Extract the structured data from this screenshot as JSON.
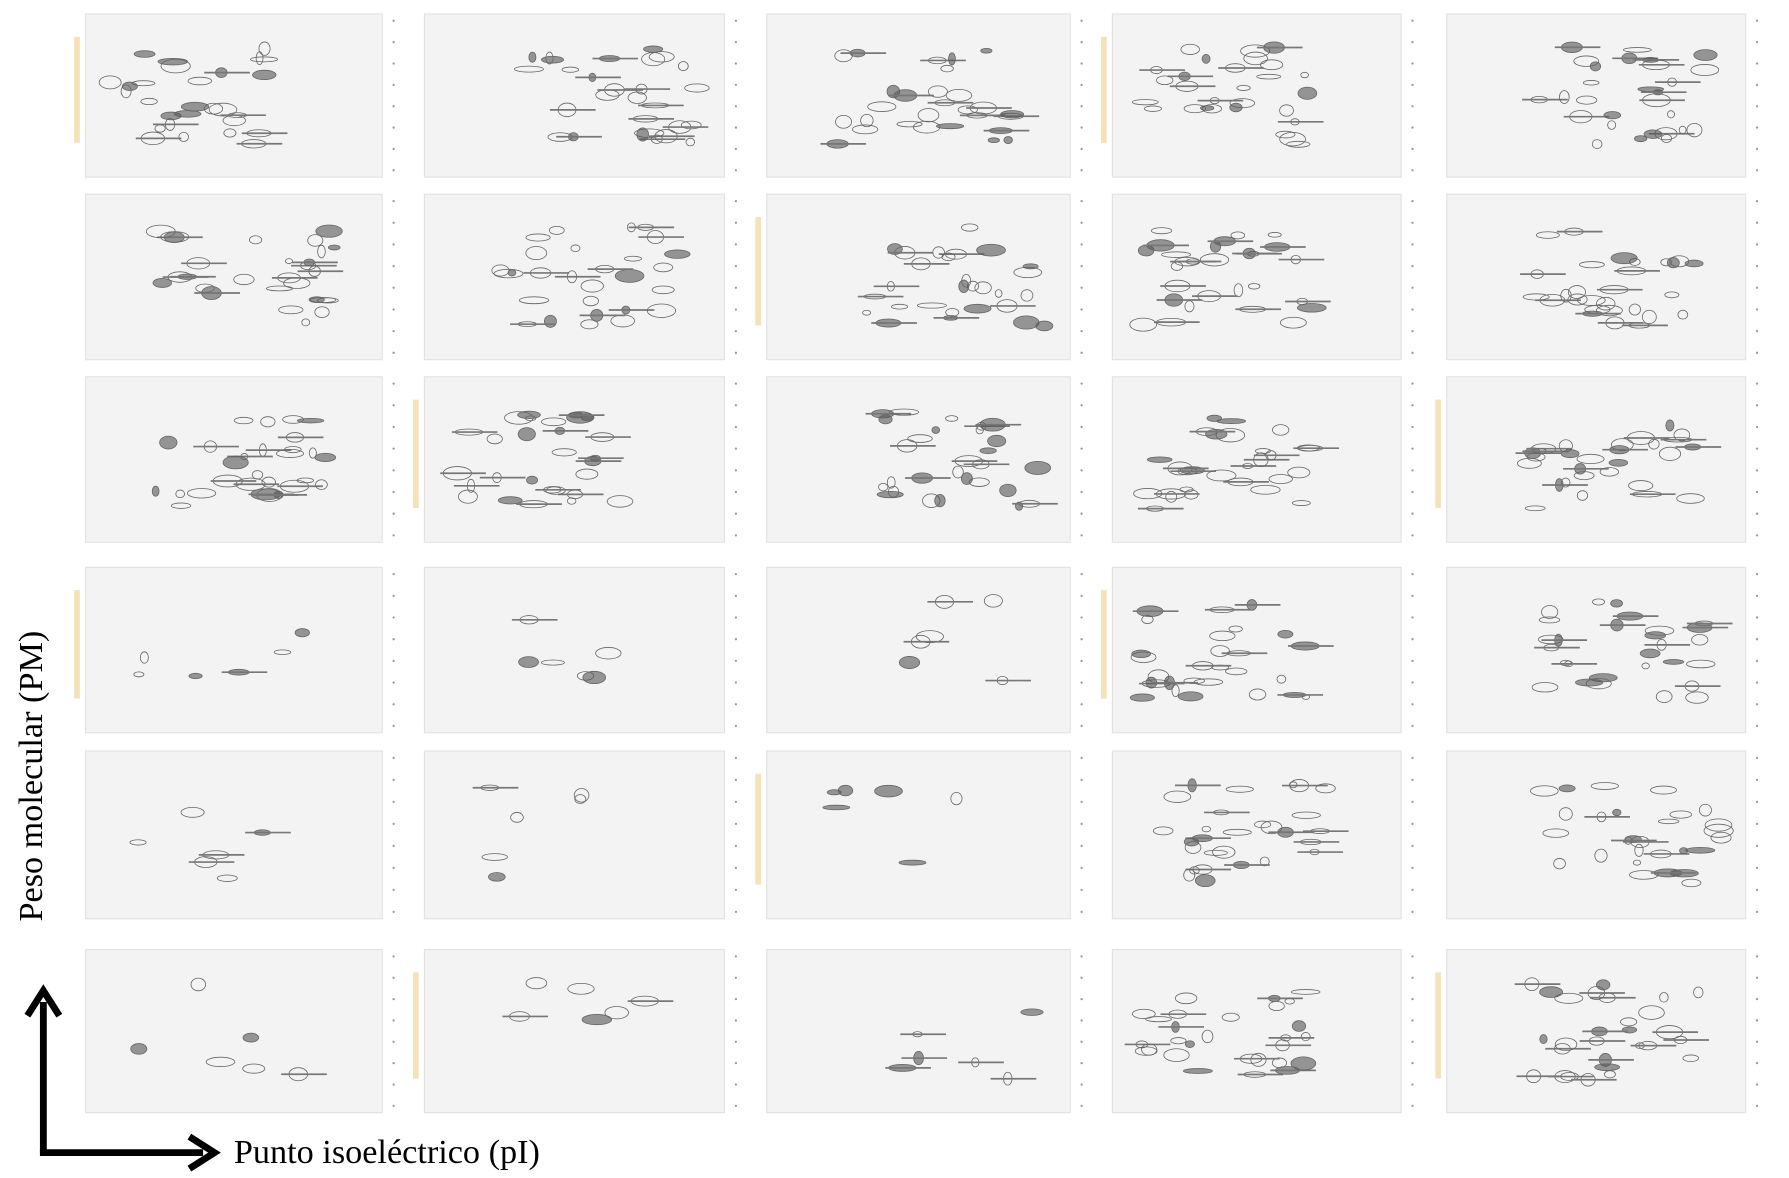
{
  "axes": {
    "y_label": "Peso molecular (PM)",
    "x_label": "Punto isoeléctrico (pI)"
  }
}
